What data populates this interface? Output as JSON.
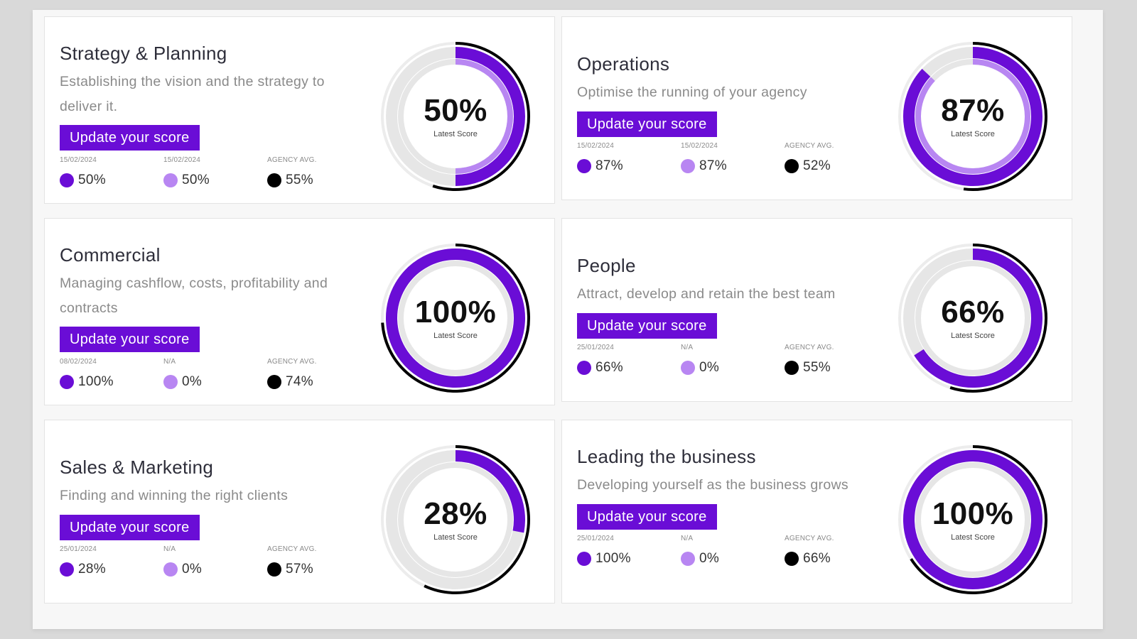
{
  "colors": {
    "latest": "#6a0dd6",
    "previous": "#b886f2",
    "agency": "#000000",
    "track": "#e6e6e6"
  },
  "cards": [
    {
      "title": "Strategy & Planning",
      "description": "Establishing the vision and the strategy to deliver it.",
      "button_label": "Update your score",
      "score": 50,
      "score_text": "50%",
      "score_label": "Latest Score",
      "previous": 50,
      "agency": 55,
      "stats": [
        {
          "label": "15/02/2024",
          "value": "50%",
          "color_key": "latest"
        },
        {
          "label": "15/02/2024",
          "value": "50%",
          "color_key": "previous"
        },
        {
          "label": "AGENCY AVG.",
          "value": "55%",
          "color_key": "agency"
        }
      ]
    },
    {
      "title": "Operations",
      "description": "Optimise the running of your agency",
      "button_label": "Update your score",
      "score": 87,
      "score_text": "87%",
      "score_label": "Latest Score",
      "previous": 87,
      "agency": 52,
      "stats": [
        {
          "label": "15/02/2024",
          "value": "87%",
          "color_key": "latest"
        },
        {
          "label": "15/02/2024",
          "value": "87%",
          "color_key": "previous"
        },
        {
          "label": "AGENCY AVG.",
          "value": "52%",
          "color_key": "agency"
        }
      ]
    },
    {
      "title": "Commercial",
      "description": "Managing cashflow, costs, profitability and contracts",
      "button_label": "Update your score",
      "score": 100,
      "score_text": "100%",
      "score_label": "Latest Score",
      "previous": 0,
      "agency": 74,
      "stats": [
        {
          "label": "08/02/2024",
          "value": "100%",
          "color_key": "latest"
        },
        {
          "label": "N/A",
          "value": "0%",
          "color_key": "previous"
        },
        {
          "label": "AGENCY AVG.",
          "value": "74%",
          "color_key": "agency"
        }
      ]
    },
    {
      "title": "People",
      "description": "Attract, develop and retain the best team",
      "button_label": "Update your score",
      "score": 66,
      "score_text": "66%",
      "score_label": "Latest Score",
      "previous": 0,
      "agency": 55,
      "stats": [
        {
          "label": "25/01/2024",
          "value": "66%",
          "color_key": "latest"
        },
        {
          "label": "N/A",
          "value": "0%",
          "color_key": "previous"
        },
        {
          "label": "AGENCY AVG.",
          "value": "55%",
          "color_key": "agency"
        }
      ]
    },
    {
      "title": "Sales & Marketing",
      "description": "Finding and winning the right clients",
      "button_label": "Update your score",
      "score": 28,
      "score_text": "28%",
      "score_label": "Latest Score",
      "previous": 0,
      "agency": 57,
      "stats": [
        {
          "label": "25/01/2024",
          "value": "28%",
          "color_key": "latest"
        },
        {
          "label": "N/A",
          "value": "0%",
          "color_key": "previous"
        },
        {
          "label": "AGENCY AVG.",
          "value": "57%",
          "color_key": "agency"
        }
      ]
    },
    {
      "title": "Leading the business",
      "description": "Developing yourself as the business grows",
      "button_label": "Update your score",
      "score": 100,
      "score_text": "100%",
      "score_label": "Latest Score",
      "previous": 0,
      "agency": 66,
      "stats": [
        {
          "label": "25/01/2024",
          "value": "100%",
          "color_key": "latest"
        },
        {
          "label": "N/A",
          "value": "0%",
          "color_key": "previous"
        },
        {
          "label": "AGENCY AVG.",
          "value": "66%",
          "color_key": "agency"
        }
      ]
    }
  ]
}
